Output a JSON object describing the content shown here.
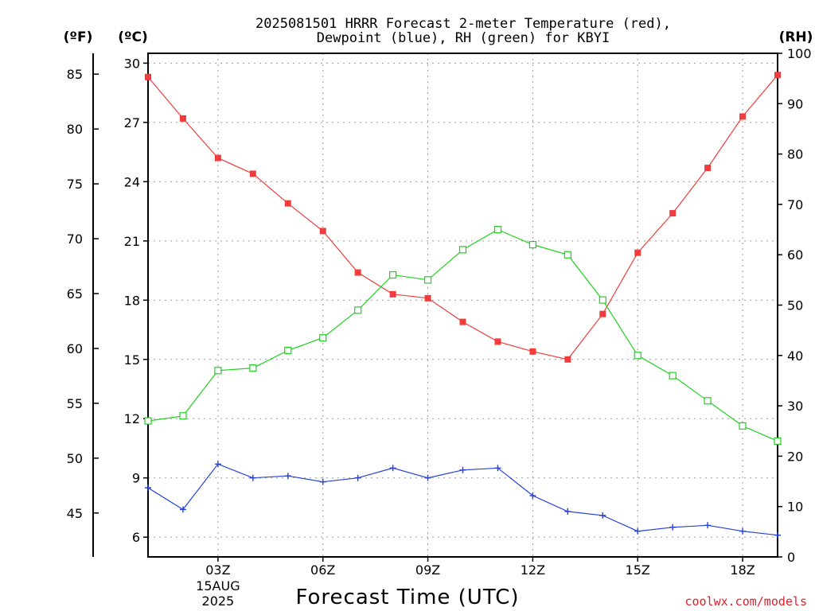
{
  "chart_data": {
    "type": "line",
    "title_line1": "2025081501 HRRR Forecast 2-meter Temperature (red),",
    "title_line2": "Dewpoint (blue), RH (green) for KBYI",
    "xlabel": "Forecast Time (UTC)",
    "credit": "coolwx.com/models",
    "units": {
      "fahrenheit": "(ºF)",
      "celsius": "(ºC)",
      "rh": "(RH)"
    },
    "x_hours": [
      1,
      2,
      3,
      4,
      5,
      6,
      7,
      8,
      9,
      10,
      11,
      12,
      13,
      14,
      15,
      16,
      17,
      18,
      19
    ],
    "x_ticks": [
      {
        "hour": 3,
        "label": "03Z",
        "sub1": "15AUG",
        "sub2": "2025"
      },
      {
        "hour": 6,
        "label": "06Z",
        "sub1": "",
        "sub2": ""
      },
      {
        "hour": 9,
        "label": "09Z",
        "sub1": "",
        "sub2": ""
      },
      {
        "hour": 12,
        "label": "12Z",
        "sub1": "",
        "sub2": ""
      },
      {
        "hour": 15,
        "label": "15Z",
        "sub1": "",
        "sub2": ""
      },
      {
        "hour": 18,
        "label": "18Z",
        "sub1": "",
        "sub2": ""
      }
    ],
    "xlim": [
      1,
      19
    ],
    "celsius_axis": {
      "ylim": [
        5,
        30.5
      ],
      "ticks": [
        "6",
        "9",
        "12",
        "15",
        "18",
        "21",
        "24",
        "27",
        "30"
      ]
    },
    "fahrenheit_axis": {
      "ticks": [
        "45",
        "50",
        "55",
        "60",
        "65",
        "70",
        "75",
        "80",
        "85"
      ]
    },
    "rh_axis": {
      "ylim": [
        0,
        100
      ],
      "ticks": [
        "0",
        "10",
        "20",
        "30",
        "40",
        "50",
        "60",
        "70",
        "80",
        "90",
        "100"
      ]
    },
    "grid": true,
    "series": [
      {
        "name": "Temperature",
        "axis": "celsius",
        "color": "#f03c3c",
        "marker": "filled-square",
        "values": [
          29.3,
          27.2,
          25.2,
          24.4,
          22.9,
          21.5,
          19.4,
          18.3,
          18.1,
          16.9,
          15.9,
          15.4,
          15.0,
          17.3,
          20.4,
          22.4,
          24.7,
          27.3,
          29.4
        ]
      },
      {
        "name": "Dewpoint",
        "axis": "celsius",
        "color": "#2540e0",
        "marker": "plus",
        "values": [
          8.5,
          7.4,
          9.7,
          9.0,
          9.1,
          8.8,
          9.0,
          9.5,
          9.0,
          9.4,
          9.5,
          8.1,
          7.3,
          7.1,
          6.3,
          6.5,
          6.6,
          6.3,
          6.1
        ]
      },
      {
        "name": "RH",
        "axis": "rh",
        "color": "#1ed21e",
        "marker": "open-square",
        "values": [
          27,
          28,
          37,
          37.5,
          41,
          43.5,
          49,
          56,
          55,
          61,
          65,
          62,
          60,
          51,
          40,
          36,
          31,
          26,
          23
        ]
      }
    ]
  }
}
